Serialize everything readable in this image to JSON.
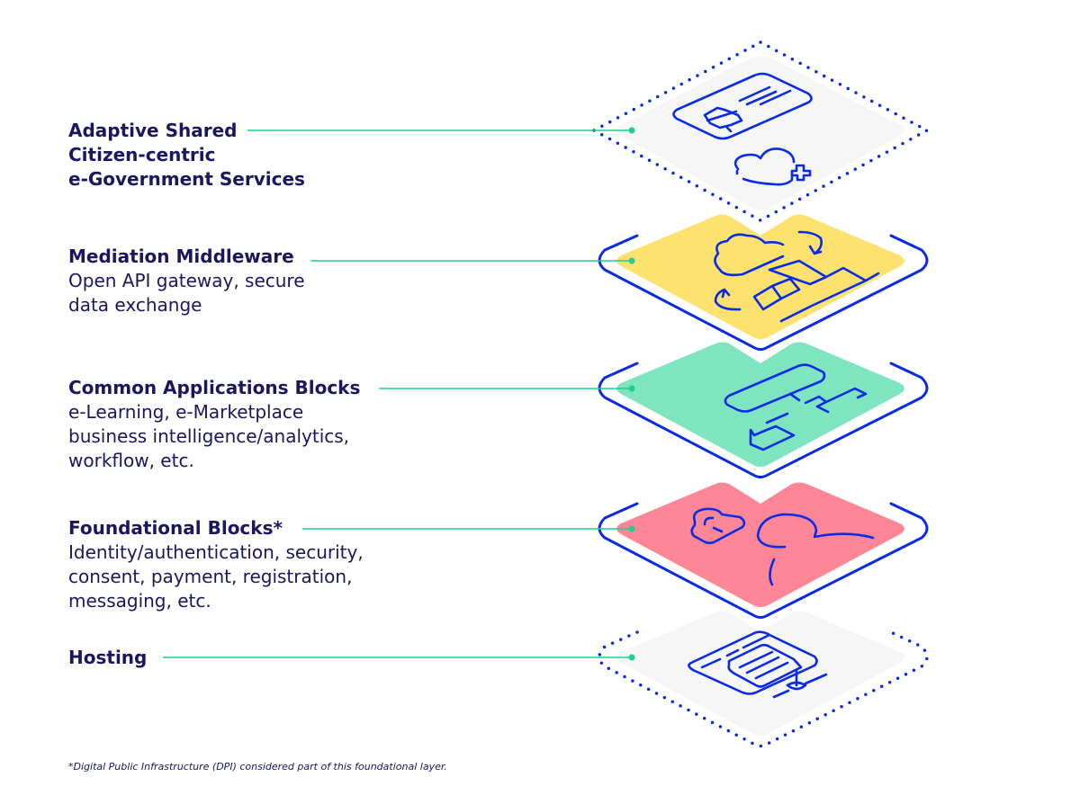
{
  "layers": [
    {
      "title": "Adaptive Shared\nCitizen-centric\ne-Government Services",
      "description": "",
      "fill": "#f6f6f6",
      "style": "dotted"
    },
    {
      "title": "Mediation Middleware",
      "description": "Open API gateway, secure\ndata exchange",
      "fill": "#fde26f",
      "style": "solid"
    },
    {
      "title": "Common Applications Blocks",
      "description": "e-Learning, e-Marketplace\nbusiness intelligence/analytics,\nworkflow, etc.",
      "fill": "#7ee5c0",
      "style": "solid"
    },
    {
      "title": "Foundational Blocks*",
      "description": "Identity/authentication, security,\nconsent, payment, registration,\nmessaging, etc.",
      "fill": "#fd8697",
      "style": "solid"
    },
    {
      "title": "Hosting",
      "description": "",
      "fill": "#f6f6f6",
      "style": "dotted"
    }
  ],
  "icons": [
    "id-card-icon",
    "heart-health-icon",
    "cloud-exchange-icon",
    "application-blocks-icon",
    "lock-user-icon",
    "server-icon"
  ],
  "footnote": "*Digital Public Infrastructure (DPI) considered part of this foundational layer.",
  "colors": {
    "stroke": "#0a2be6",
    "connector": "#1fcf8f",
    "text": "#1b1660"
  }
}
